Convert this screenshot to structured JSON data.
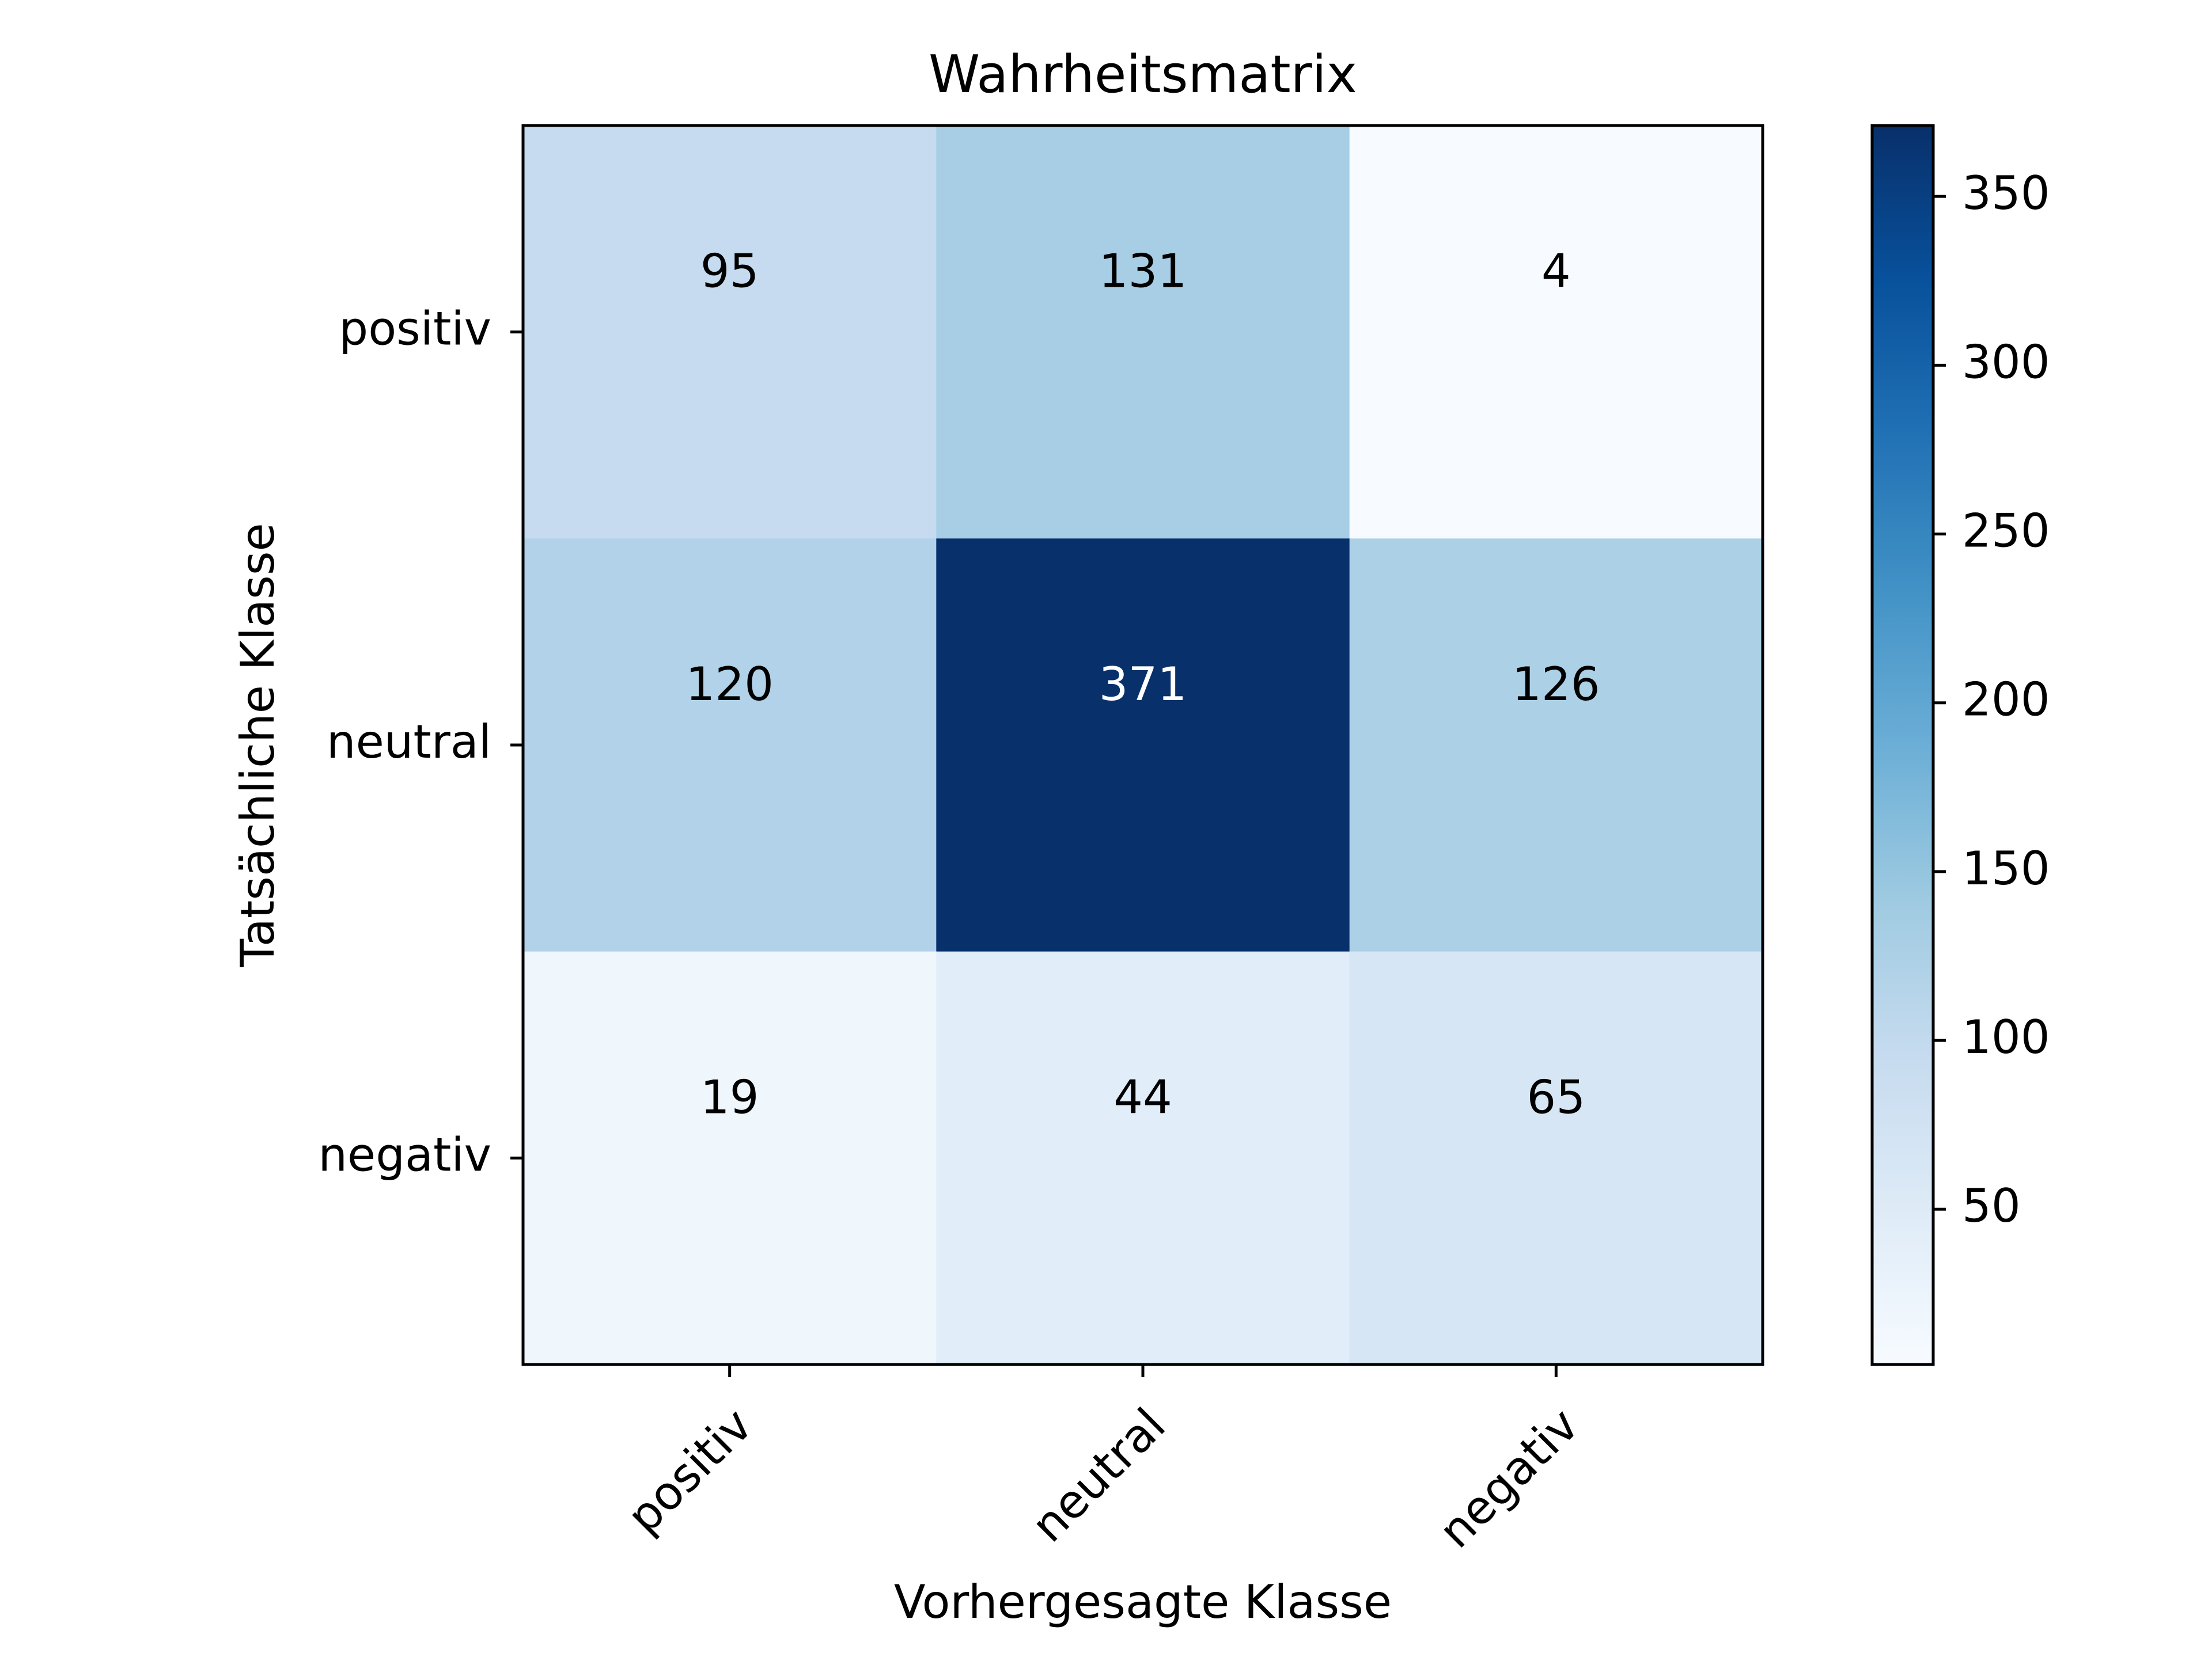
{
  "chart_data": {
    "type": "heatmap",
    "title": "Wahrheitsmatrix",
    "xlabel": "Vorhergesagte Klasse",
    "ylabel": "Tatsächliche Klasse",
    "x_categories": [
      "positiv",
      "neutral",
      "negativ"
    ],
    "y_categories": [
      "positiv",
      "neutral",
      "negativ"
    ],
    "values": [
      [
        95,
        131,
        4
      ],
      [
        120,
        371,
        126
      ],
      [
        19,
        44,
        65
      ]
    ],
    "colormap": "Blues",
    "colorbar": {
      "min": 4,
      "max": 371,
      "ticks": [
        50,
        100,
        150,
        200,
        250,
        300,
        350
      ]
    },
    "x_tick_rotation_deg": 45,
    "text_color_light": "#ffffff",
    "text_color_dark": "#000000"
  }
}
